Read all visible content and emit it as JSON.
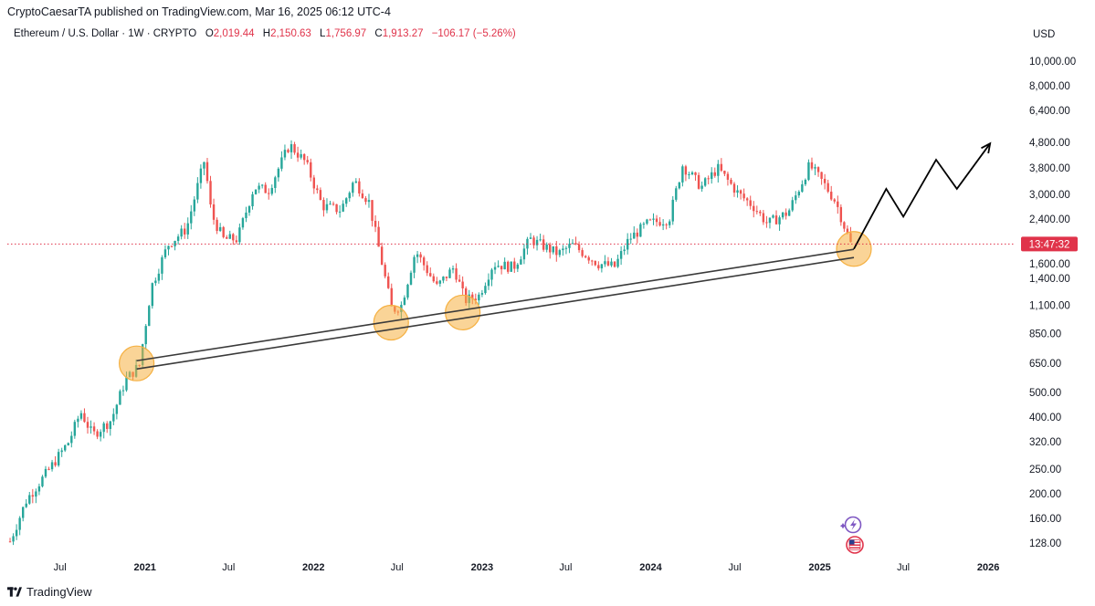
{
  "header": {
    "published_line": "CryptoCaesarTA published on TradingView.com, Mar 16, 2025 06:12 UTC-4"
  },
  "legend": {
    "symbol": "Ethereum / U.S. Dollar · 1W · CRYPTO",
    "open_key": "O",
    "open": "2,019.44",
    "high_key": "H",
    "high": "2,150.63",
    "low_key": "L",
    "low": "1,756.97",
    "close_key": "C",
    "close": "1,913.27",
    "change": "−106.17 (−5.26%)"
  },
  "currency": "USD",
  "countdown": "13:47:32",
  "footer": {
    "brand": "TradingView"
  },
  "colors": {
    "up": "#26a69a",
    "down": "#ef5350",
    "price_line": "#e0334a",
    "circle": "#f5b041",
    "trend": "#3a3a3a",
    "projection": "#000000"
  },
  "chart_data": {
    "type": "candlestick",
    "scale": "log",
    "y_ticks": [
      "10,000.00",
      "8,000.00",
      "6,400.00",
      "4,800.00",
      "3,800.00",
      "3,000.00",
      "2,400.00",
      "1,600.00",
      "1,400.00",
      "1,100.00",
      "850.00",
      "650.00",
      "500.00",
      "400.00",
      "320.00",
      "250.00",
      "200.00",
      "160.00",
      "128.00"
    ],
    "y_tick_values": [
      10000,
      8000,
      6400,
      4800,
      3800,
      3000,
      2400,
      1600,
      1400,
      1100,
      850,
      650,
      500,
      400,
      320,
      250,
      200,
      160,
      128
    ],
    "x_ticks": [
      {
        "label": "Jul",
        "date": "2020-07-01",
        "year": false
      },
      {
        "label": "2021",
        "date": "2021-01-01",
        "year": true
      },
      {
        "label": "Jul",
        "date": "2021-07-01",
        "year": false
      },
      {
        "label": "2022",
        "date": "2022-01-01",
        "year": true
      },
      {
        "label": "Jul",
        "date": "2022-07-01",
        "year": false
      },
      {
        "label": "2023",
        "date": "2023-01-01",
        "year": true
      },
      {
        "label": "Jul",
        "date": "2023-07-01",
        "year": false
      },
      {
        "label": "2024",
        "date": "2024-01-01",
        "year": true
      },
      {
        "label": "Jul",
        "date": "2024-07-01",
        "year": false
      },
      {
        "label": "2025",
        "date": "2025-01-01",
        "year": true
      },
      {
        "label": "Jul",
        "date": "2025-07-01",
        "year": false
      },
      {
        "label": "2026",
        "date": "2026-01-01",
        "year": true
      }
    ],
    "date_range": [
      "2020-03-09",
      "2026-03-01"
    ],
    "price_range": [
      118,
      11500
    ],
    "anchors": [
      [
        "2020-03-15",
        130
      ],
      [
        "2020-04-20",
        190
      ],
      [
        "2020-06-01",
        240
      ],
      [
        "2020-07-20",
        320
      ],
      [
        "2020-08-15",
        420
      ],
      [
        "2020-09-10",
        340
      ],
      [
        "2020-10-20",
        390
      ],
      [
        "2020-11-20",
        560
      ],
      [
        "2020-12-20",
        640
      ],
      [
        "2021-01-15",
        1300
      ],
      [
        "2021-02-20",
        1900
      ],
      [
        "2021-04-01",
        2200
      ],
      [
        "2021-05-10",
        4100
      ],
      [
        "2021-05-25",
        2500
      ],
      [
        "2021-06-20",
        2000
      ],
      [
        "2021-07-20",
        2000
      ],
      [
        "2021-08-25",
        3200
      ],
      [
        "2021-09-25",
        3100
      ],
      [
        "2021-11-10",
        4700
      ],
      [
        "2021-12-15",
        4000
      ],
      [
        "2022-01-20",
        2700
      ],
      [
        "2022-03-01",
        2600
      ],
      [
        "2022-03-30",
        3400
      ],
      [
        "2022-05-01",
        2800
      ],
      [
        "2022-06-20",
        1050
      ],
      [
        "2022-07-10",
        1100
      ],
      [
        "2022-08-10",
        1800
      ],
      [
        "2022-09-25",
        1300
      ],
      [
        "2022-11-01",
        1550
      ],
      [
        "2022-11-25",
        1150
      ],
      [
        "2022-12-25",
        1200
      ],
      [
        "2023-01-25",
        1600
      ],
      [
        "2023-03-10",
        1550
      ],
      [
        "2023-04-15",
        2000
      ],
      [
        "2023-06-15",
        1750
      ],
      [
        "2023-07-15",
        1900
      ],
      [
        "2023-09-10",
        1600
      ],
      [
        "2023-10-15",
        1560
      ],
      [
        "2023-11-15",
        2000
      ],
      [
        "2023-12-25",
        2300
      ],
      [
        "2024-02-10",
        2400
      ],
      [
        "2024-03-10",
        3900
      ],
      [
        "2024-04-20",
        3200
      ],
      [
        "2024-05-25",
        3800
      ],
      [
        "2024-07-10",
        3000
      ],
      [
        "2024-08-10",
        2700
      ],
      [
        "2024-09-10",
        2300
      ],
      [
        "2024-10-25",
        2550
      ],
      [
        "2024-12-10",
        3900
      ],
      [
        "2025-01-10",
        3300
      ],
      [
        "2025-02-05",
        2800
      ],
      [
        "2025-02-25",
        2200
      ],
      [
        "2025-03-10",
        1900
      ]
    ],
    "trendlines": [
      {
        "from": [
          "2020-12-14",
          666
        ],
        "to": [
          "2025-03-16",
          1823
        ]
      },
      {
        "from": [
          "2020-12-14",
          618
        ],
        "to": [
          "2025-03-16",
          1693
        ]
      }
    ],
    "highlight_circles": [
      {
        "date": "2020-12-14",
        "price": 650
      },
      {
        "date": "2022-06-18",
        "price": 940
      },
      {
        "date": "2022-11-20",
        "price": 1030
      },
      {
        "date": "2025-03-16",
        "price": 1830
      }
    ],
    "projection": [
      [
        "2025-03-16",
        1830
      ],
      [
        "2025-05-25",
        3150
      ],
      [
        "2025-07-01",
        2450
      ],
      [
        "2025-09-10",
        4100
      ],
      [
        "2025-10-25",
        3150
      ],
      [
        "2026-01-05",
        4750
      ]
    ],
    "last_price": 1913.27
  }
}
